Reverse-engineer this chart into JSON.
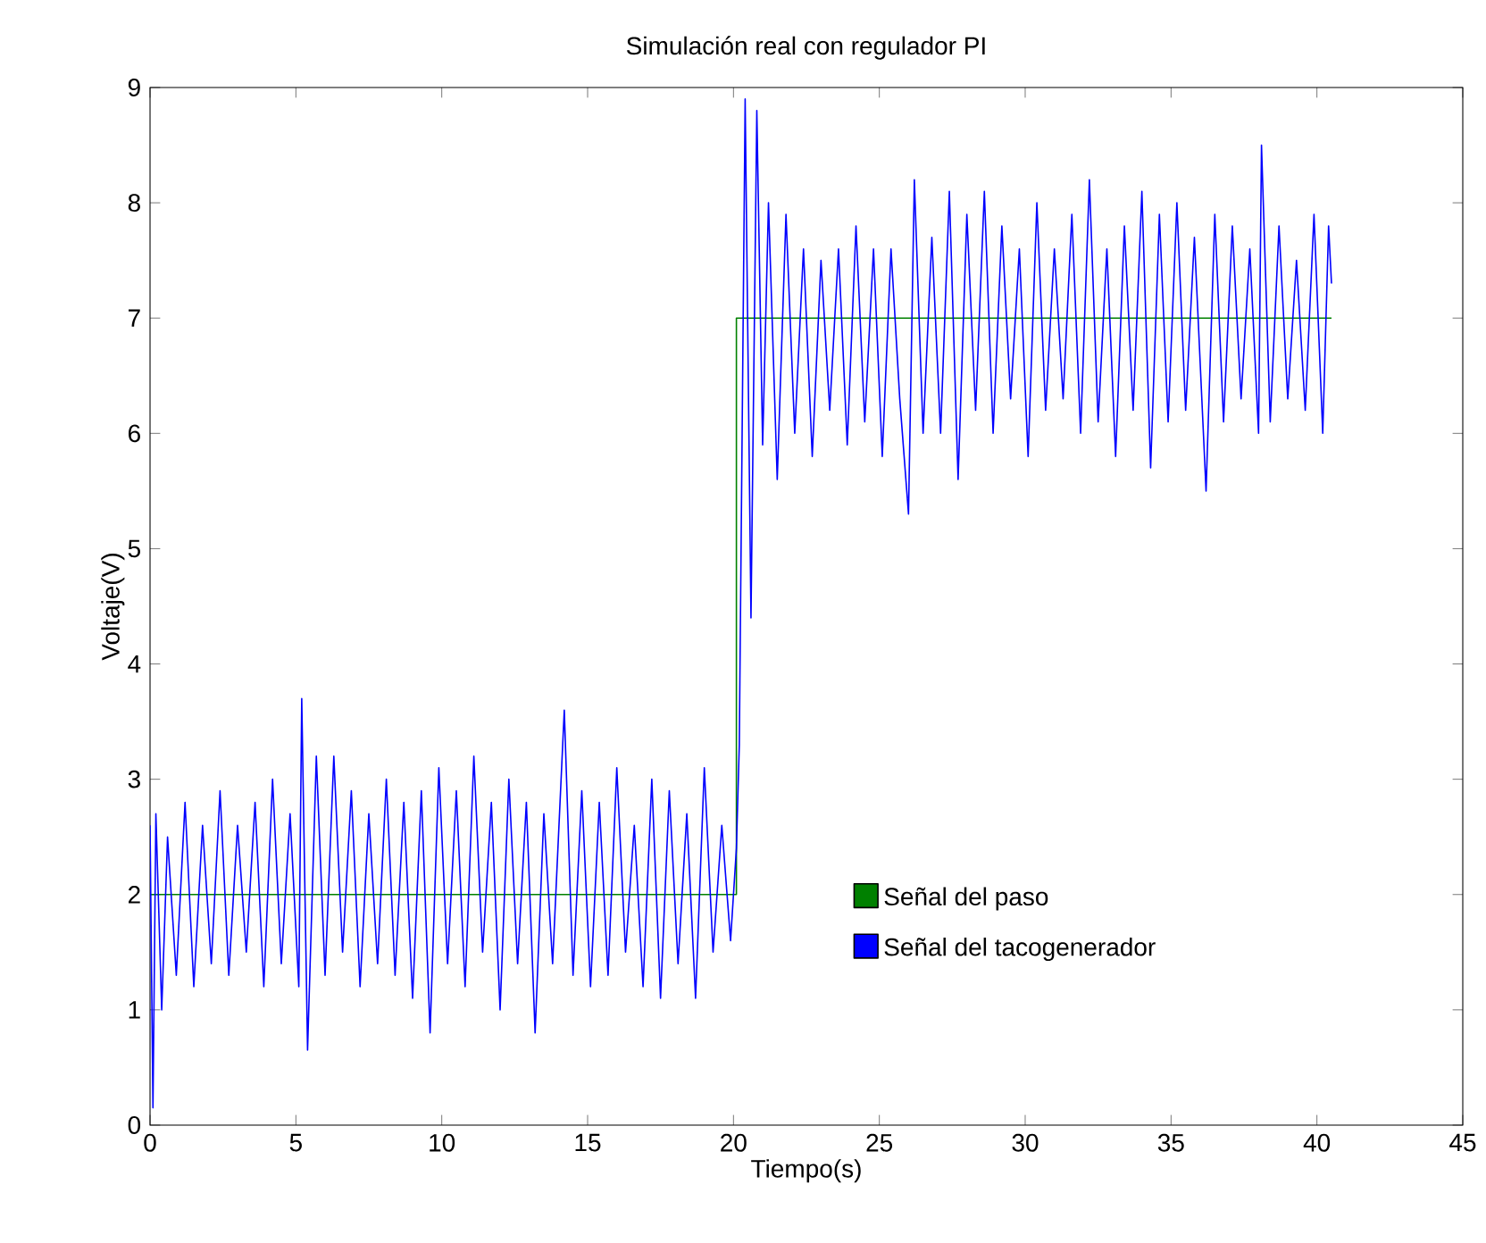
{
  "chart_data": {
    "type": "line",
    "title": "Simulación real con regulador PI",
    "xlabel": "Tiempo(s)",
    "ylabel": "Voltaje(V)",
    "xlim": [
      0,
      45
    ],
    "ylim": [
      0,
      9
    ],
    "xticks": [
      0,
      5,
      10,
      15,
      20,
      25,
      30,
      35,
      40,
      45
    ],
    "yticks": [
      0,
      1,
      2,
      3,
      4,
      5,
      6,
      7,
      8,
      9
    ],
    "grid": false,
    "legend": "bottom right",
    "marker": "none",
    "line_style": "solid",
    "series": [
      {
        "name": "Señal del paso",
        "type": "step",
        "color": "#008000",
        "x": [
          0,
          20.1,
          40.5
        ],
        "values": [
          2,
          7,
          7
        ]
      },
      {
        "name": "Señal del tacogenerador",
        "color": "#0000ff",
        "x": [
          0,
          0.1,
          0.2,
          0.4,
          0.6,
          0.9,
          1.2,
          1.5,
          1.8,
          2.1,
          2.4,
          2.7,
          3.0,
          3.3,
          3.6,
          3.9,
          4.2,
          4.5,
          4.8,
          5.1,
          5.2,
          5.4,
          5.7,
          6.0,
          6.3,
          6.6,
          6.9,
          7.2,
          7.5,
          7.8,
          8.1,
          8.4,
          8.7,
          9.0,
          9.3,
          9.6,
          9.9,
          10.2,
          10.5,
          10.8,
          11.1,
          11.4,
          11.7,
          12.0,
          12.3,
          12.6,
          12.9,
          13.2,
          13.5,
          13.8,
          14.2,
          14.5,
          14.8,
          15.1,
          15.4,
          15.7,
          16.0,
          16.3,
          16.6,
          16.9,
          17.2,
          17.5,
          17.8,
          18.1,
          18.4,
          18.7,
          19.0,
          19.3,
          19.6,
          19.9,
          20.1,
          20.2,
          20.4,
          20.6,
          20.8,
          21.0,
          21.2,
          21.5,
          21.8,
          22.1,
          22.4,
          22.7,
          23.0,
          23.3,
          23.6,
          23.9,
          24.2,
          24.5,
          24.8,
          25.1,
          25.4,
          25.7,
          26.0,
          26.2,
          26.5,
          26.8,
          27.1,
          27.4,
          27.7,
          28.0,
          28.3,
          28.6,
          28.9,
          29.2,
          29.5,
          29.8,
          30.1,
          30.4,
          30.7,
          31.0,
          31.3,
          31.6,
          31.9,
          32.2,
          32.5,
          32.8,
          33.1,
          33.4,
          33.7,
          34.0,
          34.3,
          34.6,
          34.9,
          35.2,
          35.5,
          35.8,
          36.2,
          36.5,
          36.8,
          37.1,
          37.4,
          37.7,
          38.0,
          38.1,
          38.4,
          38.7,
          39.0,
          39.3,
          39.6,
          39.9,
          40.2,
          40.4,
          40.5
        ],
        "values": [
          2.6,
          0.15,
          2.7,
          1.0,
          2.5,
          1.3,
          2.8,
          1.2,
          2.6,
          1.4,
          2.9,
          1.3,
          2.6,
          1.5,
          2.8,
          1.2,
          3.0,
          1.4,
          2.7,
          1.2,
          3.7,
          0.65,
          3.2,
          1.3,
          3.2,
          1.5,
          2.9,
          1.2,
          2.7,
          1.4,
          3.0,
          1.3,
          2.8,
          1.1,
          2.9,
          0.8,
          3.1,
          1.4,
          2.9,
          1.2,
          3.2,
          1.5,
          2.8,
          1.0,
          3.0,
          1.4,
          2.8,
          0.8,
          2.7,
          1.4,
          3.6,
          1.3,
          2.9,
          1.2,
          2.8,
          1.3,
          3.1,
          1.5,
          2.6,
          1.2,
          3.0,
          1.1,
          2.9,
          1.4,
          2.7,
          1.1,
          3.1,
          1.5,
          2.6,
          1.6,
          2.4,
          3.3,
          8.9,
          4.4,
          8.8,
          5.9,
          8.0,
          5.6,
          7.9,
          6.0,
          7.6,
          5.8,
          7.5,
          6.2,
          7.6,
          5.9,
          7.8,
          6.1,
          7.6,
          5.8,
          7.6,
          6.3,
          5.3,
          8.2,
          6.0,
          7.7,
          6.0,
          8.1,
          5.6,
          7.9,
          6.2,
          8.1,
          6.0,
          7.8,
          6.3,
          7.6,
          5.8,
          8.0,
          6.2,
          7.6,
          6.3,
          7.9,
          6.0,
          8.2,
          6.1,
          7.6,
          5.8,
          7.8,
          6.2,
          8.1,
          5.7,
          7.9,
          6.1,
          8.0,
          6.2,
          7.7,
          5.5,
          7.9,
          6.1,
          7.8,
          6.3,
          7.6,
          6.0,
          8.5,
          6.1,
          7.8,
          6.3,
          7.5,
          6.2,
          7.9,
          6.0,
          7.8,
          7.3
        ]
      }
    ]
  }
}
